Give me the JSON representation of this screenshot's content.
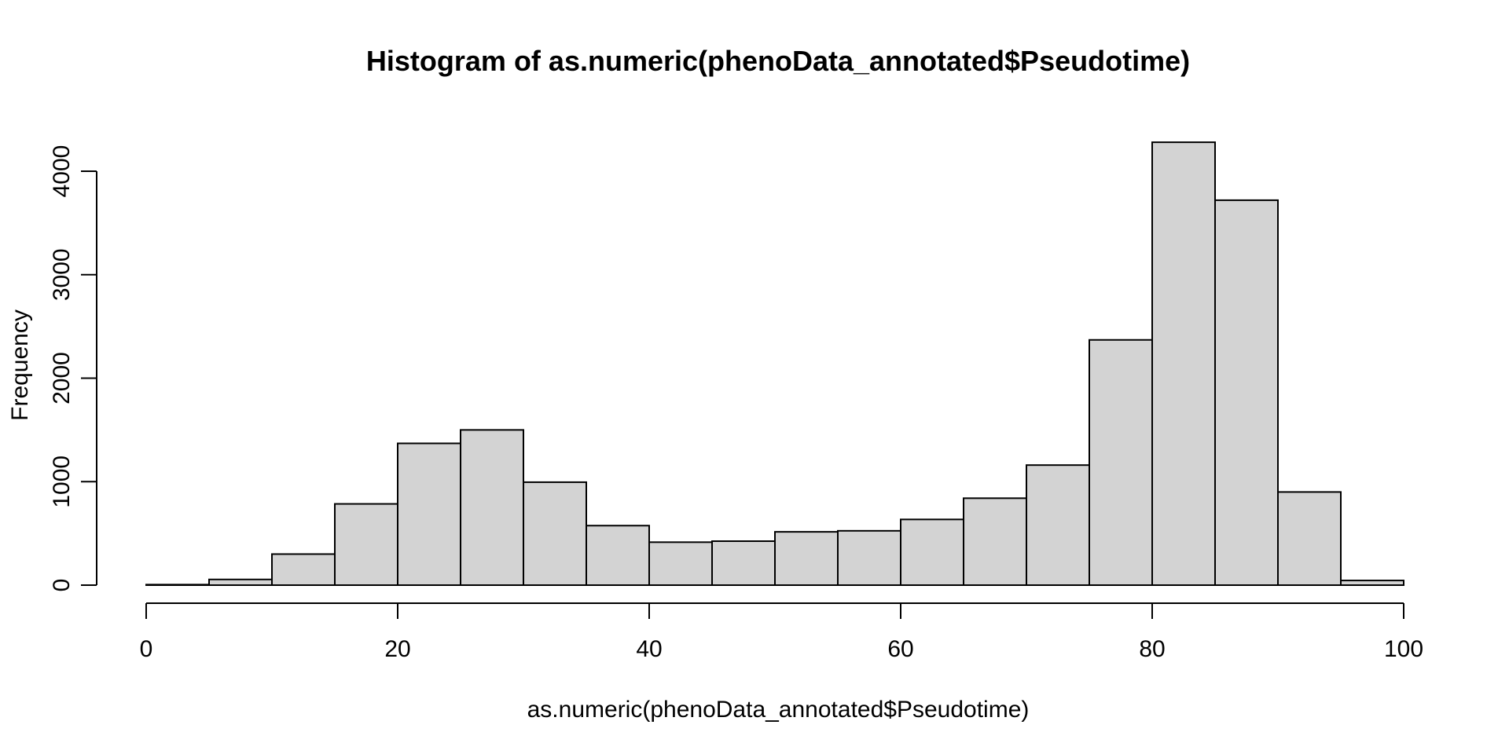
{
  "chart_data": {
    "type": "bar",
    "title": "Histogram of as.numeric(phenoData_annotated$Pseudotime)",
    "xlabel": "as.numeric(phenoData_annotated$Pseudotime)",
    "ylabel": "Frequency",
    "bin_edges": [
      0,
      5,
      10,
      15,
      20,
      25,
      30,
      35,
      40,
      45,
      50,
      55,
      60,
      65,
      70,
      75,
      80,
      85,
      90,
      95,
      100
    ],
    "values": [
      5,
      55,
      300,
      785,
      1370,
      1500,
      995,
      575,
      415,
      425,
      515,
      525,
      635,
      840,
      1160,
      2370,
      4280,
      3720,
      900,
      45
    ],
    "xlim": [
      0,
      100
    ],
    "ylim": [
      0,
      4000
    ],
    "x_ticks": [
      0,
      20,
      40,
      60,
      80,
      100
    ],
    "y_ticks": [
      0,
      1000,
      2000,
      3000,
      4000
    ],
    "x_tick_labels": [
      "0",
      "20",
      "40",
      "60",
      "80",
      "100"
    ],
    "y_tick_labels": [
      "0",
      "1000",
      "2000",
      "3000",
      "4000"
    ],
    "bar_fill": "#d3d3d3",
    "bar_stroke": "#000000",
    "grid": false
  }
}
